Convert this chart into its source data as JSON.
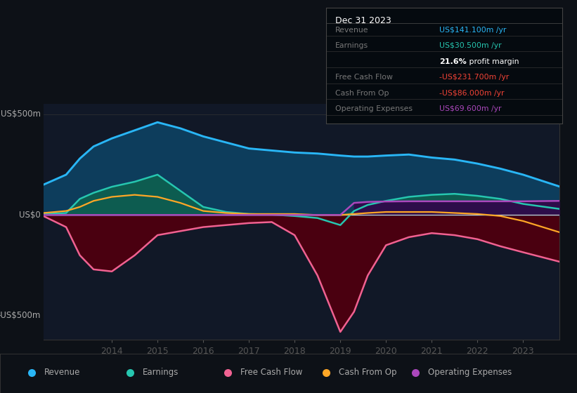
{
  "background_color": "#0d1117",
  "plot_bg_color": "#111827",
  "y_label_top": "US$500m",
  "y_label_zero": "US$0",
  "y_label_bot": "-US$500m",
  "y_max": 550,
  "y_min": -620,
  "years": [
    2012.5,
    2013.0,
    2013.3,
    2013.6,
    2014.0,
    2014.5,
    2015.0,
    2015.5,
    2016.0,
    2016.5,
    2017.0,
    2017.5,
    2018.0,
    2018.5,
    2019.0,
    2019.3,
    2019.6,
    2020.0,
    2020.5,
    2021.0,
    2021.5,
    2022.0,
    2022.5,
    2023.0,
    2023.8
  ],
  "revenue": [
    150,
    200,
    280,
    340,
    380,
    420,
    460,
    430,
    390,
    360,
    330,
    320,
    310,
    305,
    295,
    290,
    290,
    295,
    300,
    285,
    275,
    255,
    230,
    200,
    141
  ],
  "earnings": [
    5,
    10,
    80,
    110,
    140,
    165,
    200,
    120,
    40,
    15,
    5,
    2,
    -5,
    -15,
    -50,
    20,
    50,
    70,
    90,
    100,
    105,
    95,
    80,
    55,
    30
  ],
  "free_cash_flow": [
    -5,
    -60,
    -200,
    -270,
    -280,
    -200,
    -100,
    -80,
    -60,
    -50,
    -40,
    -35,
    -100,
    -300,
    -580,
    -480,
    -300,
    -150,
    -110,
    -90,
    -100,
    -120,
    -155,
    -185,
    -232
  ],
  "cash_from_op": [
    10,
    20,
    40,
    70,
    90,
    100,
    90,
    60,
    20,
    10,
    5,
    5,
    5,
    0,
    0,
    5,
    10,
    15,
    15,
    15,
    10,
    5,
    -5,
    -30,
    -86
  ],
  "op_expenses": [
    0,
    0,
    0,
    0,
    0,
    0,
    0,
    0,
    0,
    0,
    0,
    0,
    0,
    0,
    0,
    60,
    65,
    67,
    68,
    68,
    68,
    68,
    68,
    68,
    70
  ],
  "x_ticks": [
    2014,
    2015,
    2016,
    2017,
    2018,
    2019,
    2020,
    2021,
    2022,
    2023
  ],
  "legend_items": [
    {
      "label": "Revenue",
      "color": "#29b6f6"
    },
    {
      "label": "Earnings",
      "color": "#26c6b0"
    },
    {
      "label": "Free Cash Flow",
      "color": "#f06292"
    },
    {
      "label": "Cash From Op",
      "color": "#ffa726"
    },
    {
      "label": "Operating Expenses",
      "color": "#ab47bc"
    }
  ],
  "info_box": {
    "date": "Dec 31 2023",
    "rows": [
      {
        "label": "Revenue",
        "value": "US$141.100m /yr",
        "value_color": "#29b6f6"
      },
      {
        "label": "Earnings",
        "value": "US$30.500m /yr",
        "value_color": "#26c6b0"
      },
      {
        "label": "",
        "value_bold": "21.6%",
        "value_plain": " profit margin",
        "value_color": "#ffffff"
      },
      {
        "label": "Free Cash Flow",
        "value": "-US$231.700m /yr",
        "value_color": "#f44336"
      },
      {
        "label": "Cash From Op",
        "value": "-US$86.000m /yr",
        "value_color": "#f44336"
      },
      {
        "label": "Operating Expenses",
        "value": "US$69.600m /yr",
        "value_color": "#ab47bc"
      }
    ]
  }
}
